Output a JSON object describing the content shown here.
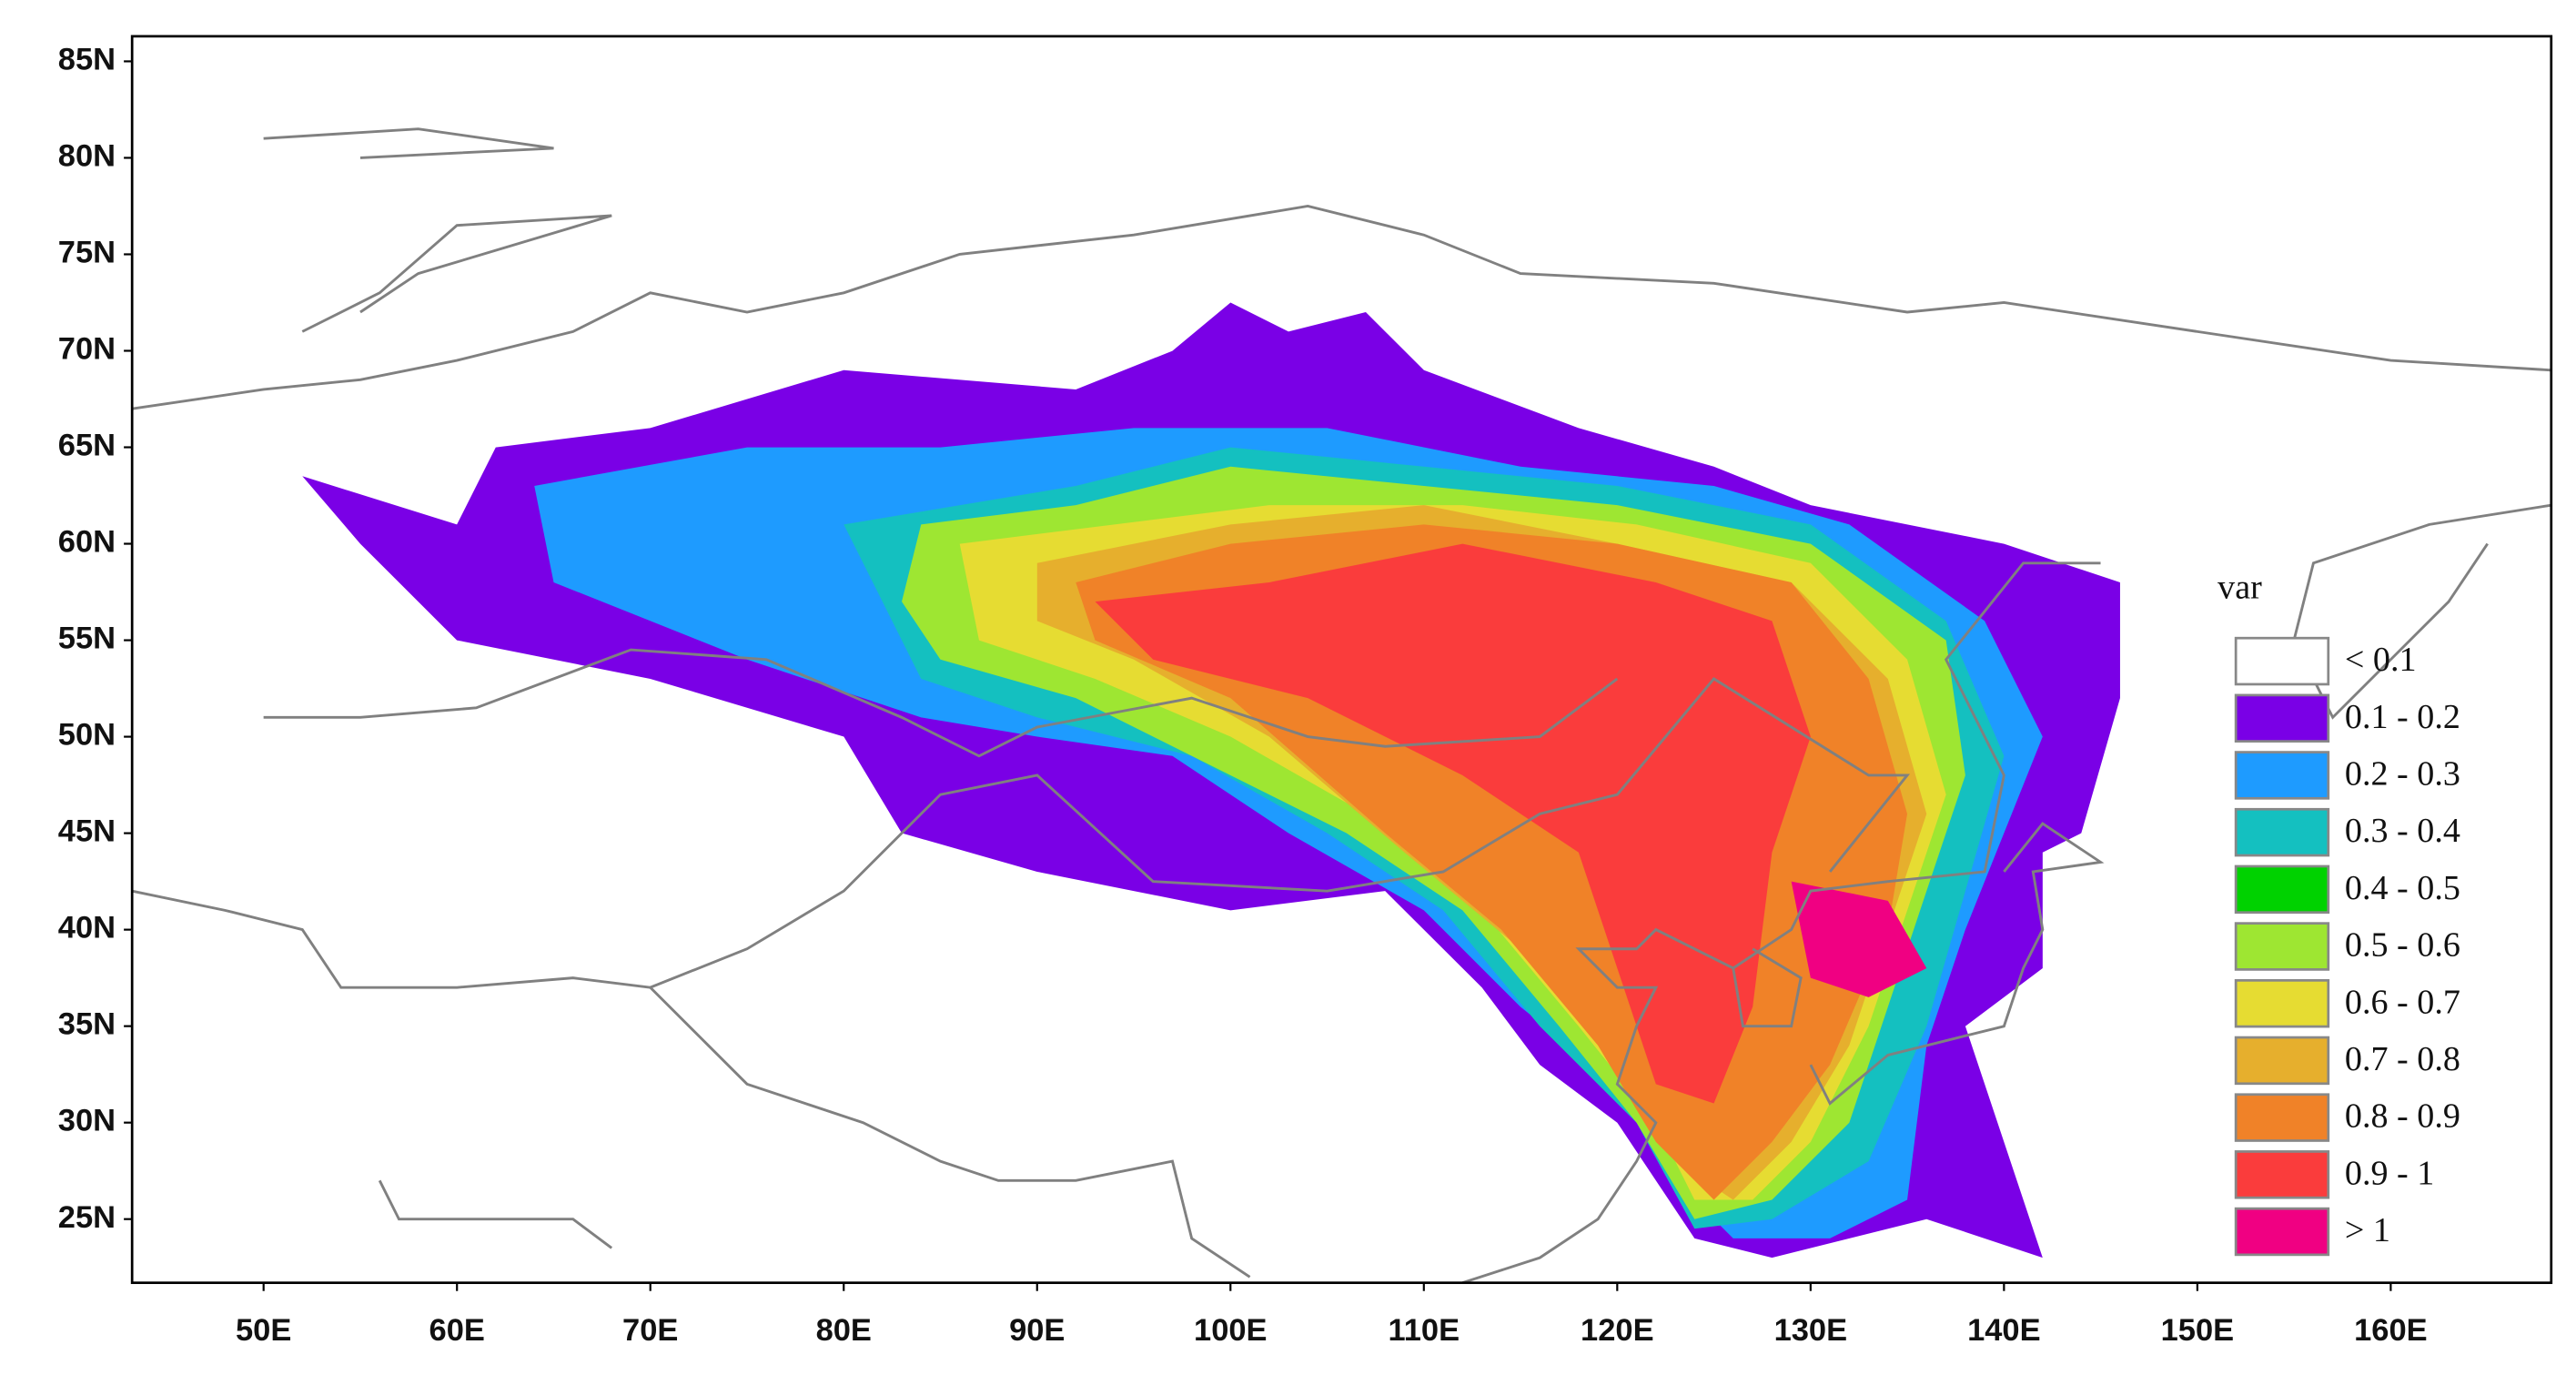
{
  "chart_data": {
    "type": "map",
    "xlim": [
      43.2,
      168.3
    ],
    "ylim": [
      21.7,
      86.3
    ],
    "xticks": [
      {
        "value": 50,
        "label": "50E"
      },
      {
        "value": 60,
        "label": "60E"
      },
      {
        "value": 70,
        "label": "70E"
      },
      {
        "value": 80,
        "label": "80E"
      },
      {
        "value": 90,
        "label": "90E"
      },
      {
        "value": 100,
        "label": "100E"
      },
      {
        "value": 110,
        "label": "110E"
      },
      {
        "value": 120,
        "label": "120E"
      },
      {
        "value": 130,
        "label": "130E"
      },
      {
        "value": 140,
        "label": "140E"
      },
      {
        "value": 150,
        "label": "150E"
      },
      {
        "value": 160,
        "label": "160E"
      }
    ],
    "yticks": [
      {
        "value": 25,
        "label": "25N"
      },
      {
        "value": 30,
        "label": "30N"
      },
      {
        "value": 35,
        "label": "35N"
      },
      {
        "value": 40,
        "label": "40N"
      },
      {
        "value": 45,
        "label": "45N"
      },
      {
        "value": 50,
        "label": "50N"
      },
      {
        "value": 55,
        "label": "55N"
      },
      {
        "value": 60,
        "label": "60N"
      },
      {
        "value": 65,
        "label": "65N"
      },
      {
        "value": 70,
        "label": "70N"
      },
      {
        "value": 75,
        "label": "75N"
      },
      {
        "value": 80,
        "label": "80N"
      },
      {
        "value": 85,
        "label": "85N"
      }
    ],
    "legend": {
      "title": "var",
      "items": [
        {
          "label": "< 0.1",
          "color": "#ffffff"
        },
        {
          "label": "0.1 - 0.2",
          "color": "#7a00e6"
        },
        {
          "label": "0.2 - 0.3",
          "color": "#1e9bff"
        },
        {
          "label": "0.3 - 0.4",
          "color": "#14c0c0"
        },
        {
          "label": "0.4 - 0.5",
          "color": "#00d200"
        },
        {
          "label": "0.5 - 0.6",
          "color": "#9ee632"
        },
        {
          "label": "0.6 - 0.7",
          "color": "#e6dc32"
        },
        {
          "label": "0.7 - 0.8",
          "color": "#e6af2d"
        },
        {
          "label": "0.8 - 0.9",
          "color": "#f08228"
        },
        {
          "label": "0.9 - 1",
          "color": "#fa3c3c"
        },
        {
          "label": "> 1",
          "color": "#f00082"
        }
      ]
    }
  }
}
